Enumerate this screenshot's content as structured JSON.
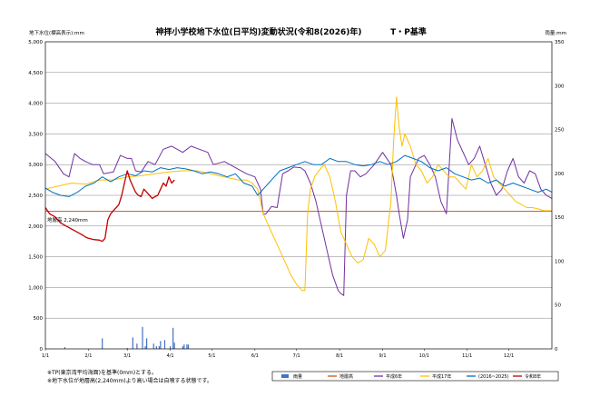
{
  "page": {
    "title": "神拝小学校地下水位(日平均)変動状況(令和8(2026)年)",
    "title_suffix": "T・P基準",
    "left_unit": "地下水位(標高表示):mm",
    "right_unit": "雨量:mm",
    "notes": [
      "※TP(東京湾平均海面)を基準(0mm)とする。",
      "※地下水位が地層高(2,240mm)より高い場合は自噴する状態です。"
    ],
    "ground_label": "地層高 2,240mm"
  },
  "colors": {
    "rain": "#4472C4",
    "ground": "#C55A11",
    "h6": "#7030A0",
    "h17": "#FFC000",
    "avg": "#0070C0",
    "r8": "#C00000",
    "grid": "#808080",
    "frame": "#000000"
  },
  "chart_data": {
    "type": "line",
    "title": "神拝小学校地下水位(日平均)変動状況(令和8(2026)年)",
    "x_ticks": [
      "1/1",
      "2/1",
      "3/1",
      "4/1",
      "5/1",
      "6/1",
      "7/1",
      "8/1",
      "9/1",
      "10/1",
      "11/1",
      "12/1"
    ],
    "xlim": [
      1,
      366
    ],
    "ylim": [
      0,
      5000
    ],
    "y_ticks": [
      "0",
      "500",
      "1,000",
      "1,500",
      "2,000",
      "2,500",
      "3,000",
      "3,500",
      "4,000",
      "4,500",
      "5,000"
    ],
    "y2lim": [
      0,
      350
    ],
    "y2_ticks": [
      "0",
      "50",
      "100",
      "150",
      "200",
      "250",
      "300",
      "350"
    ],
    "grid": "horizontal",
    "legend_position": "bottom",
    "legend": [
      "雨量",
      "地層高",
      "平成6年",
      "平成17年",
      "(2016~2025)",
      "令和8年"
    ],
    "ground_level": 2240,
    "rain": {
      "name": "雨量",
      "x": [
        15,
        42,
        60,
        64,
        67,
        71,
        73,
        74,
        79,
        81,
        83,
        84,
        87,
        91,
        93,
        94,
        100,
        101,
        103,
        104
      ],
      "values": [
        2,
        12,
        1,
        13,
        6,
        25,
        3,
        12,
        6,
        3,
        3,
        9,
        10,
        3,
        24,
        7,
        3,
        5,
        5,
        5
      ]
    },
    "series": [
      {
        "name": "平成6年",
        "x": [
          1,
          8,
          14,
          18,
          22,
          26,
          30,
          35,
          40,
          43,
          50,
          55,
          60,
          63,
          66,
          70,
          75,
          80,
          86,
          92,
          100,
          106,
          112,
          118,
          122,
          130,
          138,
          146,
          152,
          156,
          158,
          160,
          164,
          168,
          172,
          176,
          180,
          185,
          188,
          192,
          196,
          200,
          204,
          208,
          212,
          214,
          216,
          218,
          221,
          224,
          228,
          232,
          238,
          244,
          250,
          254,
          256,
          259,
          262,
          264,
          268,
          270,
          274,
          278,
          282,
          286,
          290,
          294,
          298,
          302,
          306,
          310,
          314,
          318,
          322,
          326,
          330,
          334,
          338,
          342,
          346,
          350,
          354,
          358,
          362,
          366
        ],
        "values": [
          3180,
          3050,
          2850,
          2800,
          3180,
          3100,
          3050,
          3000,
          3000,
          2850,
          2880,
          3150,
          3100,
          3100,
          2900,
          2880,
          3050,
          3000,
          3250,
          3300,
          3200,
          3300,
          3250,
          3200,
          3000,
          3050,
          2950,
          2850,
          2800,
          2600,
          2190,
          2200,
          2320,
          2300,
          2850,
          2900,
          2960,
          2950,
          2900,
          2700,
          2400,
          2000,
          1600,
          1200,
          950,
          900,
          870,
          2500,
          2900,
          2900,
          2800,
          2850,
          3000,
          3200,
          3000,
          2500,
          2200,
          1800,
          2100,
          2800,
          3000,
          3100,
          3150,
          3000,
          2800,
          2400,
          2200,
          3750,
          3400,
          3200,
          3000,
          3100,
          3300,
          3000,
          2700,
          2500,
          2600,
          2900,
          3100,
          2800,
          2700,
          2900,
          2850,
          2600,
          2500,
          2450
        ],
        "color_key": "h6"
      },
      {
        "name": "平成17年",
        "x": [
          1,
          10,
          20,
          30,
          40,
          50,
          60,
          70,
          80,
          90,
          100,
          110,
          120,
          130,
          140,
          146,
          150,
          154,
          158,
          162,
          166,
          170,
          174,
          178,
          182,
          186,
          188,
          190,
          192,
          195,
          198,
          202,
          206,
          210,
          214,
          218,
          222,
          226,
          230,
          234,
          238,
          242,
          246,
          248,
          250,
          252,
          254,
          256,
          258,
          260,
          264,
          268,
          272,
          276,
          280,
          284,
          288,
          292,
          296,
          300,
          304,
          308,
          312,
          316,
          320,
          324,
          328,
          332,
          336,
          340,
          344,
          348,
          352,
          356,
          360,
          366
        ],
        "values": [
          2600,
          2650,
          2700,
          2680,
          2750,
          2750,
          2800,
          2820,
          2850,
          2880,
          2900,
          2900,
          2850,
          2800,
          2750,
          2750,
          2700,
          2600,
          2200,
          2000,
          1800,
          1600,
          1400,
          1200,
          1050,
          950,
          950,
          2200,
          2600,
          2800,
          2900,
          3000,
          2800,
          2400,
          1900,
          1700,
          1500,
          1400,
          1450,
          1800,
          1700,
          1500,
          1600,
          2000,
          2400,
          3400,
          4100,
          3600,
          3300,
          3500,
          3300,
          3000,
          2900,
          2700,
          2800,
          3000,
          2900,
          2800,
          2800,
          2700,
          2600,
          3000,
          2800,
          2900,
          3100,
          2800,
          2700,
          2600,
          2500,
          2400,
          2350,
          2300,
          2300,
          2280,
          2250,
          2250
        ],
        "color_key": "h17"
      },
      {
        "name": "(2016~2025)",
        "x": [
          1,
          6,
          12,
          18,
          24,
          30,
          36,
          42,
          48,
          54,
          60,
          66,
          72,
          78,
          84,
          90,
          96,
          102,
          108,
          114,
          120,
          126,
          132,
          138,
          144,
          150,
          154,
          158,
          162,
          166,
          170,
          176,
          182,
          188,
          194,
          200,
          206,
          212,
          218,
          224,
          230,
          236,
          242,
          248,
          254,
          260,
          266,
          272,
          278,
          284,
          290,
          296,
          302,
          308,
          314,
          320,
          326,
          332,
          338,
          344,
          350,
          356,
          362,
          366
        ],
        "values": [
          2620,
          2550,
          2500,
          2480,
          2550,
          2650,
          2700,
          2800,
          2720,
          2800,
          2850,
          2820,
          2900,
          2880,
          2950,
          2920,
          2950,
          2930,
          2900,
          2850,
          2880,
          2850,
          2800,
          2850,
          2700,
          2650,
          2500,
          2600,
          2700,
          2800,
          2900,
          2950,
          3000,
          3050,
          3000,
          3000,
          3100,
          3050,
          3050,
          3000,
          2980,
          3000,
          3050,
          3000,
          3050,
          3150,
          3100,
          3050,
          2950,
          2900,
          2950,
          2850,
          2800,
          2750,
          2780,
          2700,
          2750,
          2650,
          2700,
          2650,
          2600,
          2550,
          2600,
          2550
        ],
        "color_key": "avg"
      },
      {
        "name": "令和8年",
        "x": [
          1,
          4,
          8,
          12,
          16,
          20,
          24,
          28,
          30,
          32,
          36,
          40,
          42,
          44,
          46,
          48,
          50,
          52,
          54,
          56,
          58,
          60,
          62,
          64,
          66,
          68,
          70,
          72,
          74,
          76,
          78,
          80,
          82,
          84,
          86,
          88,
          90,
          92,
          94
        ],
        "values": [
          2300,
          2200,
          2150,
          2050,
          2000,
          1950,
          1900,
          1850,
          1820,
          1800,
          1780,
          1770,
          1750,
          1800,
          2100,
          2200,
          2250,
          2300,
          2350,
          2500,
          2700,
          2900,
          2750,
          2650,
          2550,
          2500,
          2480,
          2600,
          2550,
          2500,
          2450,
          2480,
          2500,
          2600,
          2700,
          2650,
          2800,
          2700,
          2750
        ],
        "color_key": "r8"
      }
    ]
  }
}
